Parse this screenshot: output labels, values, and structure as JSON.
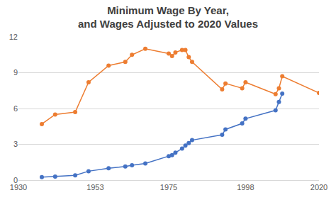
{
  "chart_data": {
    "type": "line",
    "title": "Minimum Wage By Year,\nand Wages Adjusted to 2020 Values",
    "x": [
      1937,
      1941,
      1947,
      1951,
      1957,
      1962,
      1964,
      1968,
      1975,
      1976,
      1977,
      1979,
      1980,
      1981,
      1982,
      1991,
      1992,
      1997,
      1998,
      2007,
      2008,
      2009,
      2020
    ],
    "series": [
      {
        "color": "#ed7d31",
        "marker": "circle",
        "values": [
          4.7,
          5.5,
          5.7,
          8.2,
          9.6,
          9.9,
          10.5,
          11.0,
          10.6,
          10.4,
          10.7,
          10.9,
          10.9,
          10.3,
          9.9,
          7.6,
          8.1,
          7.7,
          8.2,
          7.2,
          7.7,
          8.7,
          7.3
        ]
      },
      {
        "color": "#4472c4",
        "marker": "circle",
        "values": [
          0.25,
          0.3,
          0.4,
          0.75,
          1.0,
          1.15,
          1.25,
          1.4,
          2.0,
          2.1,
          2.3,
          2.65,
          2.9,
          3.1,
          3.35,
          3.8,
          4.25,
          4.75,
          5.15,
          5.85,
          6.55,
          7.25,
          null
        ]
      }
    ],
    "xlim": [
      1930,
      2020
    ],
    "xticks": [
      1930,
      1953,
      1975,
      1998,
      2020
    ],
    "ylim": [
      0,
      12
    ],
    "yticks": [
      0,
      3,
      6,
      9,
      12
    ],
    "grid": true
  }
}
